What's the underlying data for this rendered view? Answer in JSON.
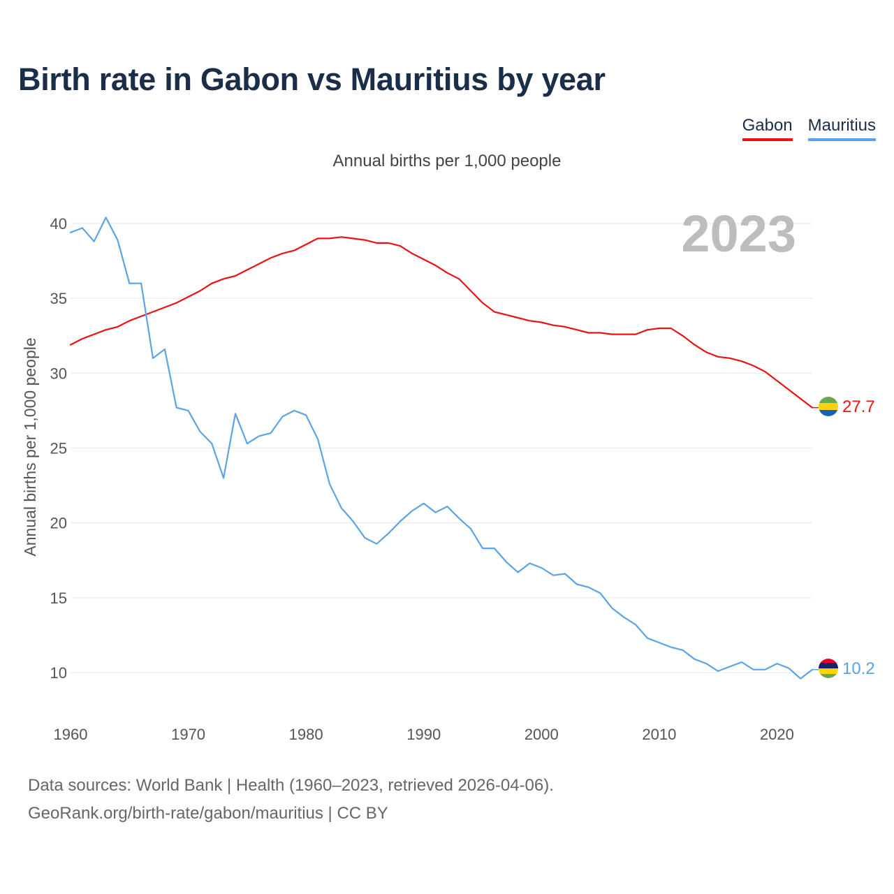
{
  "title": "Birth rate in Gabon vs Mauritius by year",
  "subtitle": "Annual births per 1,000 people",
  "legend": [
    {
      "label": "Gabon",
      "color": "#ee1111"
    },
    {
      "label": "Mauritius",
      "color": "#5aa4e6"
    }
  ],
  "source_line1": "Data sources: World Bank | Health (1960–2023, retrieved 2026-04-06).",
  "source_line2": "GeoRank.org/birth-rate/gabon/mauritius | CC BY",
  "chart_data": {
    "type": "line",
    "title": "Birth rate in Gabon vs Mauritius by year",
    "xlabel": "",
    "ylabel": "Annual births per 1,000 people",
    "year_label": "2023",
    "xlim": [
      1960,
      2023
    ],
    "ylim": [
      10,
      40
    ],
    "x_ticks": [
      1960,
      1970,
      1980,
      1990,
      2000,
      2010,
      2020
    ],
    "y_ticks": [
      10,
      15,
      20,
      25,
      30,
      35,
      40
    ],
    "grid": true,
    "x": [
      1960,
      1961,
      1962,
      1963,
      1964,
      1965,
      1966,
      1967,
      1968,
      1969,
      1970,
      1971,
      1972,
      1973,
      1974,
      1975,
      1976,
      1977,
      1978,
      1979,
      1980,
      1981,
      1982,
      1983,
      1984,
      1985,
      1986,
      1987,
      1988,
      1989,
      1990,
      1991,
      1992,
      1993,
      1994,
      1995,
      1996,
      1997,
      1998,
      1999,
      2000,
      2001,
      2002,
      2003,
      2004,
      2005,
      2006,
      2007,
      2008,
      2009,
      2010,
      2011,
      2012,
      2013,
      2014,
      2015,
      2016,
      2017,
      2018,
      2019,
      2020,
      2021,
      2022,
      2023
    ],
    "series": [
      {
        "name": "Gabon",
        "color": "#ee1111",
        "end_label": "27.7",
        "flag": "gabon-flag-icon",
        "values": [
          31.9,
          32.3,
          32.6,
          32.9,
          33.1,
          33.5,
          33.8,
          34.1,
          34.4,
          34.7,
          35.1,
          35.5,
          36.0,
          36.3,
          36.5,
          36.9,
          37.3,
          37.7,
          38.0,
          38.2,
          38.6,
          39.0,
          39.0,
          39.1,
          39.0,
          38.9,
          38.7,
          38.7,
          38.5,
          38.0,
          37.6,
          37.2,
          36.7,
          36.3,
          35.5,
          34.7,
          34.1,
          33.9,
          33.7,
          33.5,
          33.4,
          33.2,
          33.1,
          32.9,
          32.7,
          32.7,
          32.6,
          32.6,
          32.6,
          32.9,
          33.0,
          33.0,
          32.5,
          31.9,
          31.4,
          31.1,
          31.0,
          30.8,
          30.5,
          30.1,
          29.5,
          28.9,
          28.3,
          27.7
        ]
      },
      {
        "name": "Mauritius",
        "color": "#5aa4e6",
        "end_label": "10.2",
        "flag": "mauritius-flag-icon",
        "values": [
          39.4,
          39.7,
          38.8,
          40.4,
          38.9,
          36.0,
          36.0,
          31.0,
          31.6,
          27.7,
          27.5,
          26.1,
          25.3,
          23.0,
          27.3,
          25.3,
          25.8,
          26.0,
          27.1,
          27.5,
          27.2,
          25.6,
          22.6,
          21.0,
          20.1,
          19.0,
          18.6,
          19.3,
          20.1,
          20.8,
          21.3,
          20.7,
          21.1,
          20.3,
          19.6,
          18.3,
          18.3,
          17.4,
          16.7,
          17.3,
          17.0,
          16.5,
          16.6,
          15.9,
          15.7,
          15.3,
          14.3,
          13.7,
          13.2,
          12.3,
          12.0,
          11.7,
          11.5,
          10.9,
          10.6,
          10.1,
          10.4,
          10.7,
          10.2,
          10.2,
          10.6,
          10.3,
          9.6,
          10.2
        ]
      }
    ]
  }
}
